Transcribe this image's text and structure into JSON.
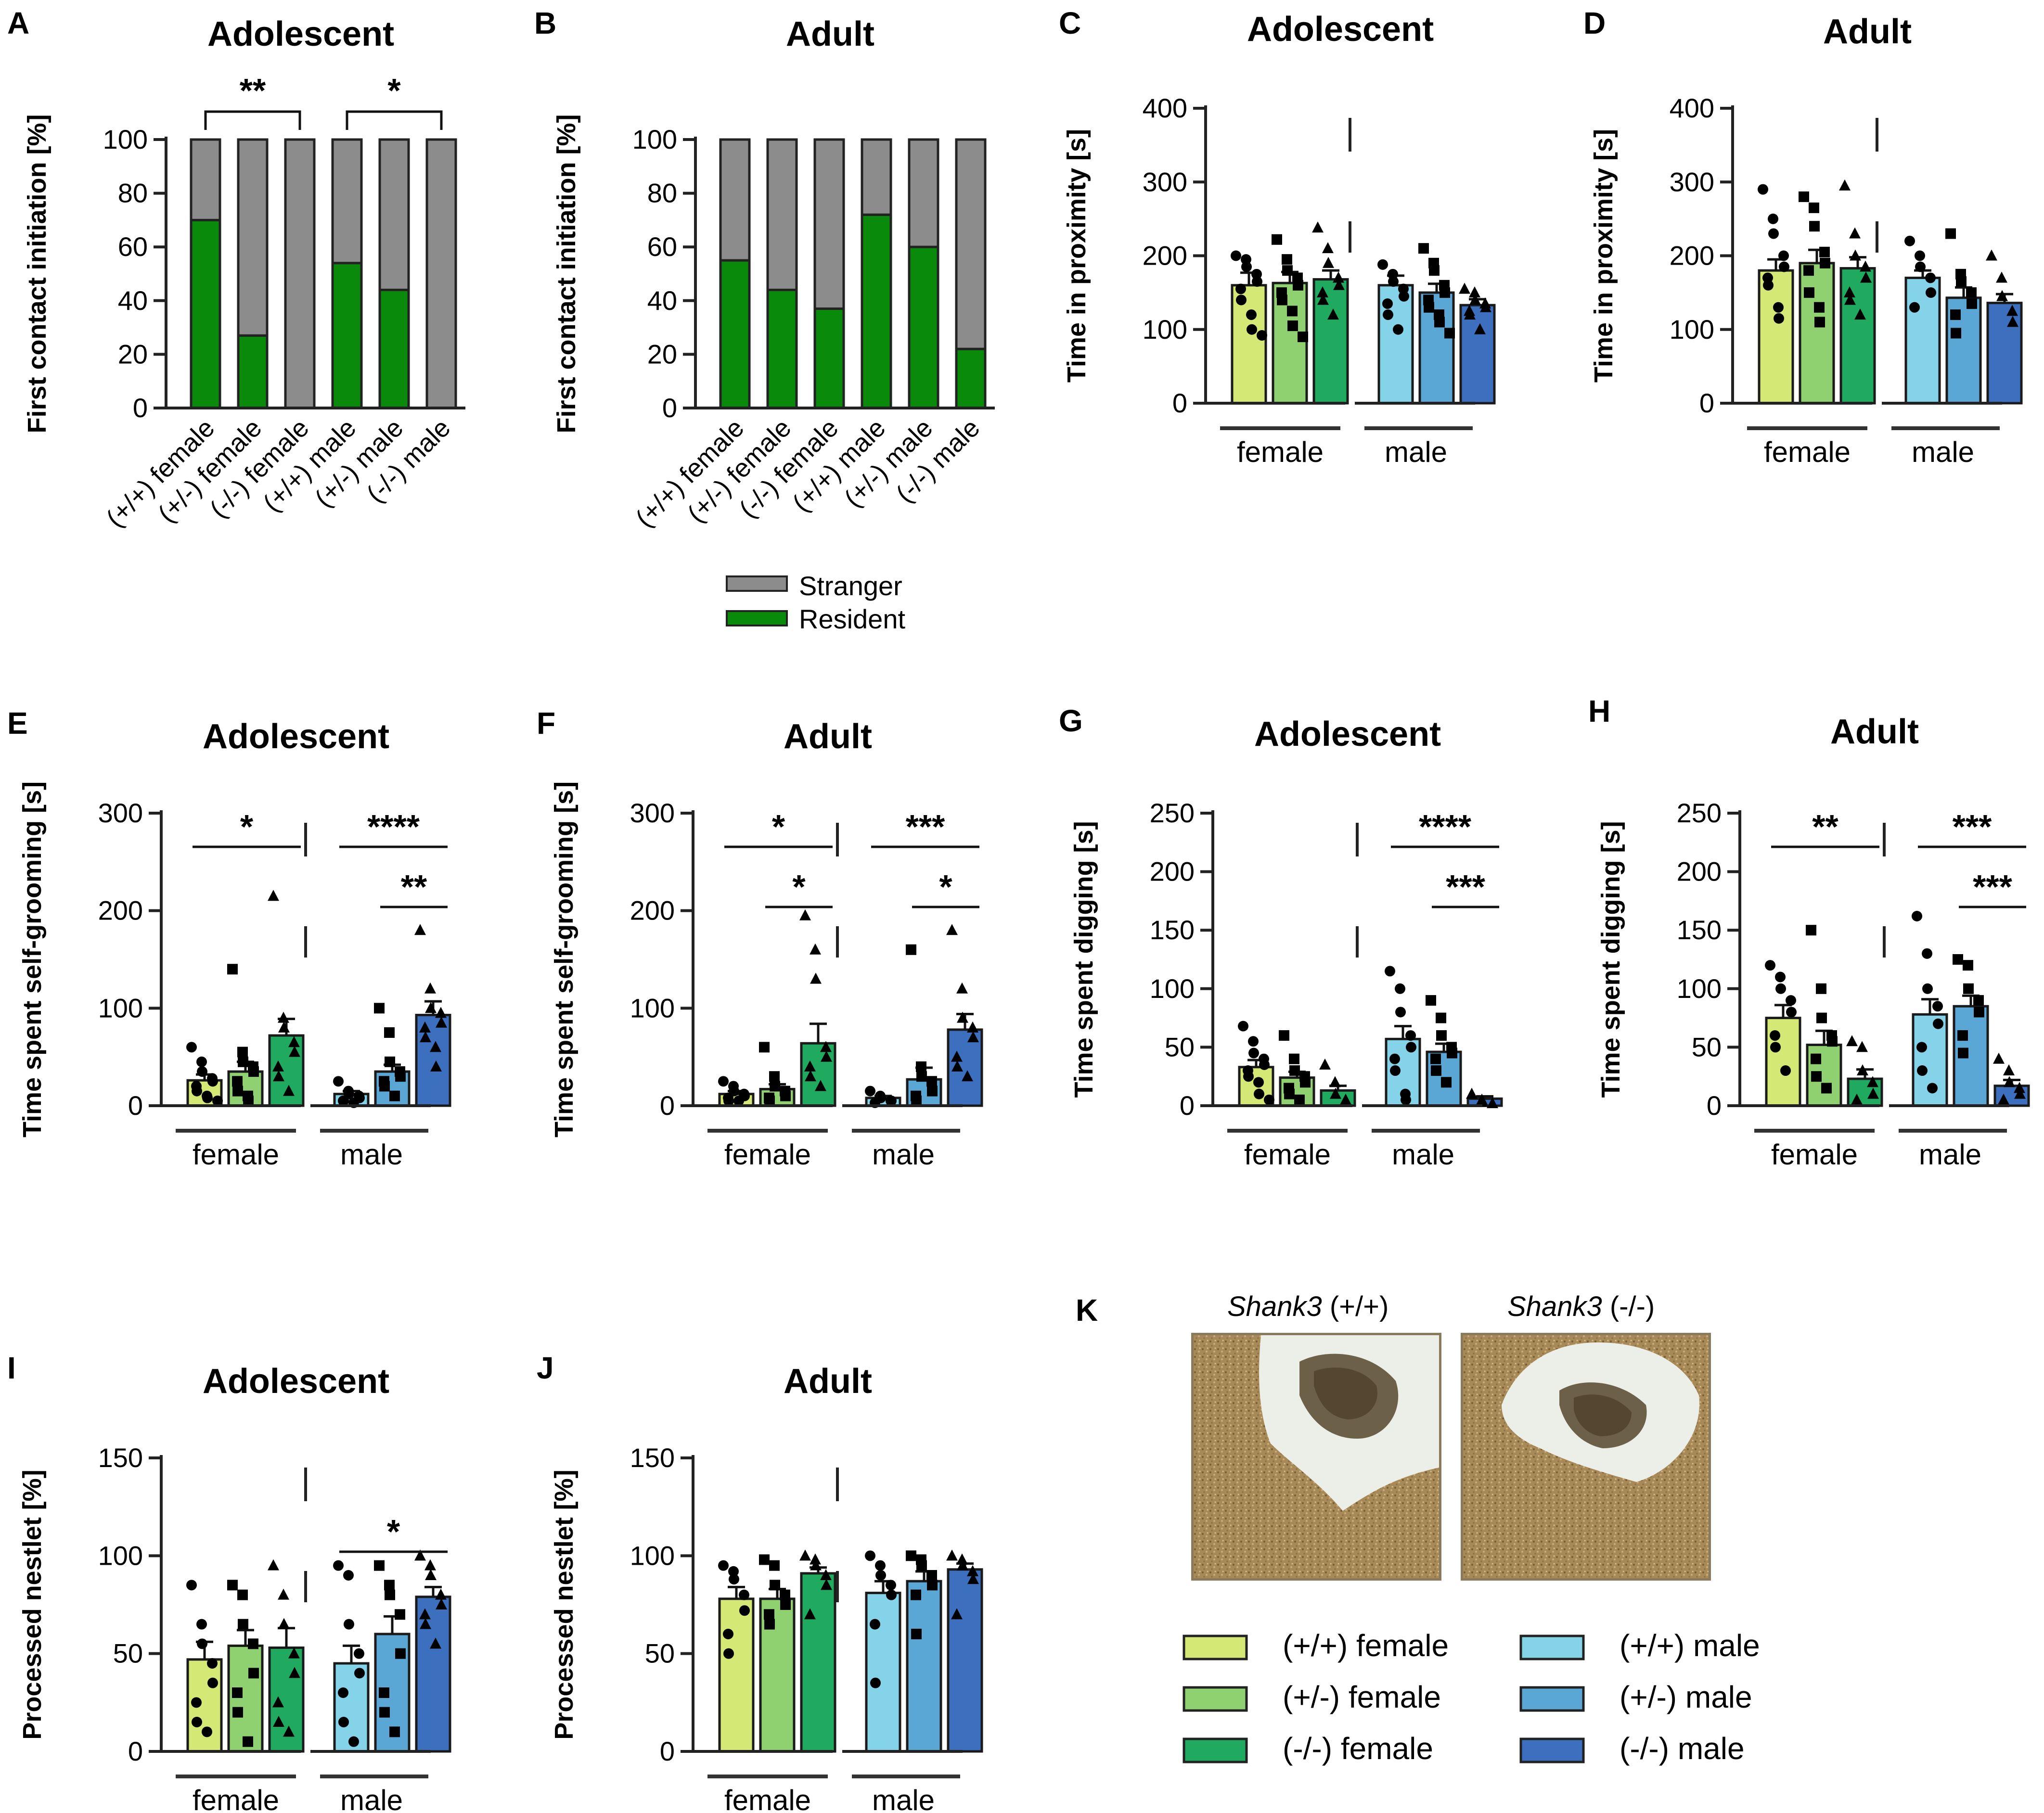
{
  "chart_data": [
    {
      "panel": "A",
      "type": "bar",
      "stacked": true,
      "title": "Adolescent",
      "ylabel": "First contact initiation [%]",
      "ylim": [
        0,
        100
      ],
      "yticks": [
        0,
        20,
        40,
        60,
        80,
        100
      ],
      "categories": [
        "(+/+) female",
        "(+/-) female",
        "(-/-) female",
        "(+/+) male",
        "(+/-) male",
        "(-/-) male"
      ],
      "series": [
        {
          "name": "Resident",
          "color": "#0a8a0a",
          "values": [
            70,
            27,
            0,
            54,
            44,
            0
          ]
        },
        {
          "name": "Stranger",
          "color": "#8c8c8c",
          "values": [
            30,
            73,
            100,
            46,
            56,
            100
          ]
        }
      ],
      "sig": [
        {
          "from": 0,
          "to": 2,
          "label": "**"
        },
        {
          "from": 3,
          "to": 5,
          "label": "*"
        }
      ]
    },
    {
      "panel": "B",
      "type": "bar",
      "stacked": true,
      "title": "Adult",
      "ylabel": "First contact initiation [%]",
      "ylim": [
        0,
        100
      ],
      "yticks": [
        0,
        20,
        40,
        60,
        80,
        100
      ],
      "categories": [
        "(+/+) female",
        "(+/-) female",
        "(-/-) female",
        "(+/+) male",
        "(+/-) male",
        "(-/-) male"
      ],
      "series": [
        {
          "name": "Resident",
          "color": "#0a8a0a",
          "values": [
            55,
            44,
            37,
            72,
            60,
            22
          ]
        },
        {
          "name": "Stranger",
          "color": "#8c8c8c",
          "values": [
            45,
            56,
            63,
            28,
            40,
            78
          ]
        }
      ],
      "legend": [
        "Stranger",
        "Resident"
      ]
    },
    {
      "panel": "C",
      "type": "bar",
      "title": "Adolescent",
      "ylabel": "Time in proximity [s]",
      "ylim": [
        0,
        400
      ],
      "yticks": [
        0,
        100,
        200,
        300,
        400
      ],
      "groups": [
        "female",
        "male"
      ],
      "values": [
        160,
        163,
        168,
        160,
        150,
        133
      ],
      "sem": [
        17,
        15,
        12,
        13,
        12,
        8
      ],
      "divider": true,
      "points": [
        [
          200,
          195,
          185,
          175,
          165,
          155,
          140,
          120,
          100,
          92
        ],
        [
          222,
          195,
          180,
          170,
          160,
          150,
          140,
          125,
          105,
          90
        ],
        [
          238,
          210,
          190,
          170,
          160,
          150,
          140,
          120
        ],
        [
          188,
          175,
          165,
          155,
          145,
          135,
          120,
          100
        ],
        [
          210,
          190,
          180,
          160,
          150,
          140,
          130,
          120,
          110,
          95
        ],
        [
          155,
          150,
          140,
          135,
          130,
          125,
          120,
          100
        ]
      ]
    },
    {
      "panel": "D",
      "type": "bar",
      "title": "Adult",
      "ylabel": "Time in proximity [s]",
      "ylim": [
        0,
        400
      ],
      "yticks": [
        0,
        100,
        200,
        300,
        400
      ],
      "groups": [
        "female",
        "male"
      ],
      "values": [
        180,
        190,
        183,
        170,
        143,
        136
      ],
      "sem": [
        15,
        18,
        15,
        10,
        14,
        12
      ],
      "divider": true,
      "points": [
        [
          290,
          250,
          230,
          200,
          185,
          170,
          160,
          130,
          115
        ],
        [
          280,
          265,
          240,
          205,
          190,
          180,
          150,
          130,
          110
        ],
        [
          295,
          230,
          200,
          185,
          170,
          150,
          140,
          120
        ],
        [
          220,
          200,
          185,
          170,
          150,
          130
        ],
        [
          230,
          175,
          165,
          150,
          135,
          120,
          95
        ],
        [
          200,
          170,
          145,
          125,
          110
        ]
      ]
    },
    {
      "panel": "E",
      "type": "bar",
      "title": "Adolescent",
      "ylabel": "Time spent self-grooming [s]",
      "ylim": [
        0,
        300
      ],
      "yticks": [
        0,
        100,
        200,
        300
      ],
      "groups": [
        "female",
        "male"
      ],
      "values": [
        26,
        35,
        72,
        12,
        35,
        93
      ],
      "sem": [
        6,
        10,
        17,
        3,
        7,
        14
      ],
      "divider": true,
      "sig": [
        {
          "from": 0,
          "to": 2,
          "label": "*",
          "level": 1
        },
        {
          "from": 3,
          "to": 5,
          "label": "****",
          "level": 1
        },
        {
          "from": 4,
          "to": 5,
          "label": "**",
          "level": 0
        }
      ],
      "points": [
        [
          60,
          45,
          35,
          28,
          25,
          20,
          15,
          10,
          8,
          5
        ],
        [
          140,
          55,
          45,
          40,
          35,
          25,
          15,
          10,
          5
        ],
        [
          215,
          90,
          80,
          65,
          55,
          40,
          30,
          15
        ],
        [
          25,
          15,
          12,
          10,
          8,
          5,
          5,
          3
        ],
        [
          100,
          75,
          45,
          35,
          30,
          25,
          20,
          10
        ],
        [
          180,
          120,
          100,
          95,
          85,
          80,
          70,
          60,
          40
        ]
      ]
    },
    {
      "panel": "F",
      "type": "bar",
      "title": "Adult",
      "ylabel": "Time spent self-grooming [s]",
      "ylim": [
        0,
        300
      ],
      "yticks": [
        0,
        100,
        200,
        300
      ],
      "groups": [
        "female",
        "male"
      ],
      "values": [
        12,
        17,
        64,
        8,
        27,
        78
      ],
      "sem": [
        3,
        5,
        20,
        2,
        12,
        16
      ],
      "divider": true,
      "sig": [
        {
          "from": 0,
          "to": 2,
          "label": "*",
          "level": 1
        },
        {
          "from": 1,
          "to": 2,
          "label": "*",
          "level": 0
        },
        {
          "from": 3,
          "to": 5,
          "label": "***",
          "level": 1
        },
        {
          "from": 4,
          "to": 5,
          "label": "*",
          "level": 0
        }
      ],
      "points": [
        [
          25,
          20,
          15,
          12,
          10,
          8,
          5,
          5
        ],
        [
          60,
          30,
          20,
          15,
          10,
          8,
          5
        ],
        [
          195,
          160,
          130,
          60,
          50,
          40,
          30,
          20
        ],
        [
          15,
          10,
          8,
          5,
          5,
          3
        ],
        [
          160,
          40,
          30,
          25,
          15,
          10,
          5
        ],
        [
          180,
          120,
          90,
          80,
          70,
          50,
          40,
          30
        ]
      ]
    },
    {
      "panel": "G",
      "type": "bar",
      "title": "Adolescent",
      "ylabel": "Time spent digging [s]",
      "ylim": [
        0,
        250
      ],
      "yticks": [
        0,
        50,
        100,
        150,
        200,
        250
      ],
      "groups": [
        "female",
        "male"
      ],
      "values": [
        33,
        24,
        13,
        57,
        46,
        6
      ],
      "sem": [
        6,
        5,
        4,
        11,
        7,
        2
      ],
      "divider": true,
      "sig": [
        {
          "from": 3,
          "to": 5,
          "label": "****",
          "level": 1
        },
        {
          "from": 4,
          "to": 5,
          "label": "***",
          "level": 0
        }
      ],
      "points": [
        [
          68,
          55,
          45,
          40,
          35,
          30,
          25,
          20,
          10,
          5
        ],
        [
          60,
          40,
          30,
          25,
          20,
          15,
          10,
          5
        ],
        [
          35,
          20,
          10,
          5
        ],
        [
          115,
          100,
          80,
          60,
          50,
          40,
          30,
          10,
          5
        ],
        [
          90,
          75,
          60,
          50,
          45,
          40,
          30,
          20
        ],
        [
          10,
          5,
          3,
          2
        ]
      ]
    },
    {
      "panel": "H",
      "type": "bar",
      "title": "Adult",
      "ylabel": "Time spent digging [s]",
      "ylim": [
        0,
        250
      ],
      "yticks": [
        0,
        50,
        100,
        150,
        200,
        250
      ],
      "groups": [
        "female",
        "male"
      ],
      "values": [
        75,
        52,
        23,
        78,
        85,
        17
      ],
      "sem": [
        11,
        12,
        8,
        13,
        9,
        5
      ],
      "divider": true,
      "sig": [
        {
          "from": 0,
          "to": 2,
          "label": "**",
          "level": 1
        },
        {
          "from": 3,
          "to": 5,
          "label": "***",
          "level": 1
        },
        {
          "from": 4,
          "to": 5,
          "label": "***",
          "level": 0
        }
      ],
      "points": [
        [
          120,
          110,
          100,
          90,
          80,
          60,
          50,
          30
        ],
        [
          150,
          100,
          75,
          60,
          55,
          40,
          25,
          15
        ],
        [
          55,
          50,
          30,
          20,
          10,
          5
        ],
        [
          162,
          130,
          100,
          85,
          70,
          50,
          30,
          15
        ],
        [
          125,
          120,
          100,
          90,
          80,
          60,
          45
        ],
        [
          40,
          30,
          20,
          15,
          10,
          5
        ]
      ]
    },
    {
      "panel": "I",
      "type": "bar",
      "title": "Adolescent",
      "ylabel": "Processed nestlet [%]",
      "ylim": [
        0,
        150
      ],
      "yticks": [
        0,
        50,
        100,
        150
      ],
      "groups": [
        "female",
        "male"
      ],
      "values": [
        47,
        54,
        53,
        45,
        60,
        79
      ],
      "sem": [
        9,
        8,
        10,
        9,
        9,
        5
      ],
      "divider": true,
      "sig": [
        {
          "from": 3,
          "to": 5,
          "label": "*",
          "level": 0
        }
      ],
      "points": [
        [
          85,
          65,
          55,
          45,
          35,
          25,
          15,
          10
        ],
        [
          85,
          80,
          65,
          55,
          40,
          30,
          20,
          5
        ],
        [
          95,
          80,
          65,
          50,
          40,
          25,
          15,
          10
        ],
        [
          95,
          90,
          65,
          50,
          40,
          30,
          15,
          5
        ],
        [
          95,
          85,
          80,
          70,
          50,
          30,
          20,
          10
        ],
        [
          100,
          95,
          90,
          80,
          75,
          70,
          65,
          55
        ]
      ]
    },
    {
      "panel": "J",
      "type": "bar",
      "title": "Adult",
      "ylabel": "Processed nestlet [%]",
      "ylim": [
        0,
        150
      ],
      "yticks": [
        0,
        50,
        100,
        150
      ],
      "groups": [
        "female",
        "male"
      ],
      "values": [
        78,
        78,
        91,
        81,
        87,
        93
      ],
      "sem": [
        6,
        5,
        3,
        6,
        5,
        3
      ],
      "divider": true,
      "points": [
        [
          95,
          92,
          88,
          80,
          72,
          60,
          50
        ],
        [
          98,
          95,
          85,
          80,
          75,
          70,
          65
        ],
        [
          100,
          98,
          95,
          90,
          85,
          70
        ],
        [
          100,
          95,
          90,
          85,
          80,
          65,
          35
        ],
        [
          100,
          98,
          95,
          90,
          85,
          80,
          60
        ],
        [
          100,
          98,
          95,
          92,
          88,
          70
        ]
      ]
    }
  ],
  "panel_labels": {
    "A": "A",
    "B": "B",
    "C": "C",
    "D": "D",
    "E": "E",
    "F": "F",
    "G": "G",
    "H": "H",
    "I": "I",
    "J": "J",
    "K": "K"
  },
  "group_labels": {
    "female": "female",
    "male": "male"
  },
  "legend_ab": {
    "stranger": "Stranger",
    "resident": "Resident"
  },
  "colors": {
    "wt_f": "#d4e875",
    "het_f": "#8fd070",
    "ko_f": "#1faa60",
    "wt_m": "#85d3e9",
    "het_m": "#5aa7d6",
    "ko_m": "#3c6fbd"
  },
  "panel_k": {
    "label_wt_gene": "Shank3",
    "label_wt_geno": " (+/+)",
    "label_ko_gene": "Shank3",
    "label_ko_geno": " (-/-)"
  },
  "genotype_legend": [
    {
      "label": "(+/+) female",
      "color": "#d4e875"
    },
    {
      "label": "(+/-) female",
      "color": "#8fd070"
    },
    {
      "label": "(-/-) female",
      "color": "#1faa60"
    },
    {
      "label": "(+/+) male",
      "color": "#85d3e9"
    },
    {
      "label": "(+/-) male",
      "color": "#5aa7d6"
    },
    {
      "label": "(-/-) male",
      "color": "#3c6fbd"
    }
  ]
}
